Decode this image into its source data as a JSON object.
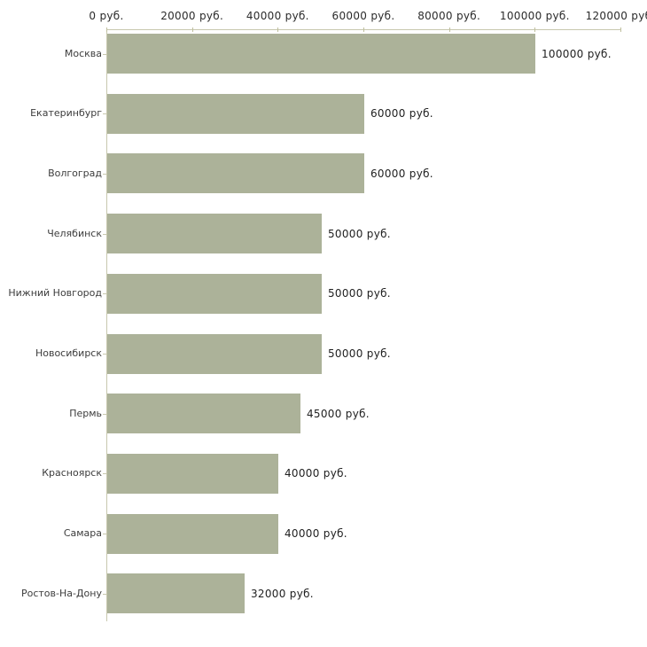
{
  "chart_data": {
    "type": "bar",
    "orientation": "horizontal",
    "title": "",
    "xlabel": "",
    "ylabel": "",
    "categories": [
      "Москва",
      "Екатеринбург",
      "Волгоград",
      "Челябинск",
      "Нижний Новгород",
      "Новосибирск",
      "Пермь",
      "Красноярск",
      "Самара",
      "Ростов-На-Дону"
    ],
    "values": [
      100000,
      60000,
      60000,
      50000,
      50000,
      50000,
      45000,
      40000,
      40000,
      32000
    ],
    "value_labels": [
      "100000 руб.",
      "60000 руб.",
      "60000 руб.",
      "50000 руб.",
      "50000 руб.",
      "50000 руб.",
      "45000 руб.",
      "40000 руб.",
      "40000 руб.",
      "32000 руб."
    ],
    "x_ticks": [
      0,
      20000,
      40000,
      60000,
      80000,
      100000,
      120000
    ],
    "x_tick_labels": [
      "0 руб.",
      "20000 руб.",
      "40000 руб.",
      "60000 руб.",
      "80000 руб.",
      "100000 руб.",
      "120000 руб."
    ],
    "xlim": [
      0,
      120000
    ],
    "grid": false,
    "legend": "none",
    "value_label_position": "right-of-bar",
    "colors": {
      "bar_fill": "#acb299",
      "axis_line": "#c8c8ae",
      "tick_mark": "#bfbf9e",
      "tick_label_text": "#2b2b2b",
      "category_text": "#3c3c3c",
      "value_text": "#1f1f1f",
      "background": "#ffffff"
    }
  }
}
